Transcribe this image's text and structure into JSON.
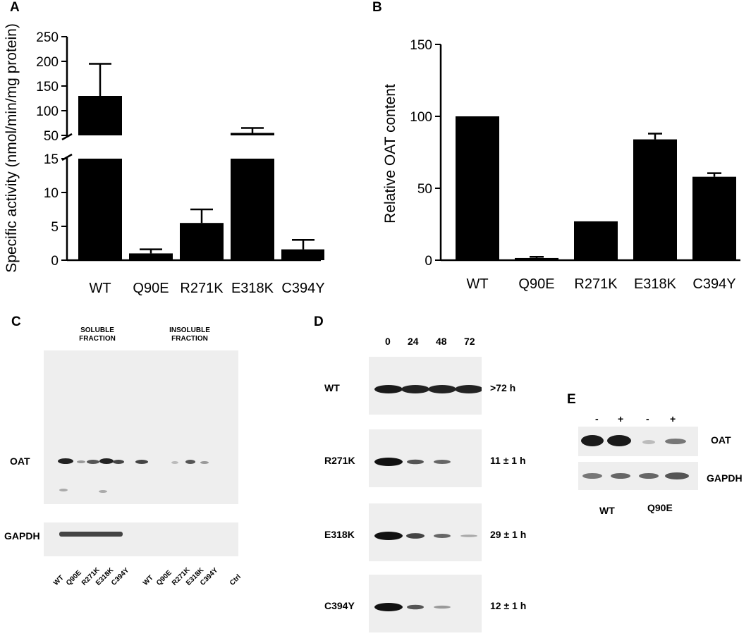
{
  "panels": {
    "a": "A",
    "b": "B",
    "c": "C",
    "d": "D",
    "e": "E"
  },
  "chart_data": [
    {
      "panel": "A",
      "type": "bar",
      "categories": [
        "WT",
        "Q90E",
        "R271K",
        "E318K",
        "C394Y"
      ],
      "values": [
        130,
        1.0,
        5.5,
        55,
        1.6
      ],
      "errors": [
        65,
        0.6,
        2.0,
        10,
        1.4
      ],
      "ylabel": "Specific activity (nmol/min/mg protein)",
      "broken_axis": {
        "lower_range": [
          0,
          15
        ],
        "upper_range": [
          50,
          250
        ],
        "lower_ticks": [
          "0",
          "5",
          "10",
          "15"
        ],
        "upper_ticks": [
          "50",
          "100",
          "150",
          "200",
          "250"
        ]
      },
      "color": "#000000"
    },
    {
      "panel": "B",
      "type": "bar",
      "categories": [
        "WT",
        "Q90E",
        "R271K",
        "E318K",
        "C394Y"
      ],
      "values": [
        100,
        1.5,
        27,
        84,
        58
      ],
      "errors": [
        0,
        0.8,
        0,
        4,
        2.5
      ],
      "ylabel": "Relative OAT content",
      "ylim": [
        0,
        150
      ],
      "yticks": [
        "0",
        "50",
        "100",
        "150"
      ],
      "color": "#000000"
    }
  ],
  "blot_c": {
    "soluble": "SOLUBLE\nFRACTION",
    "insoluble": "INSOLUBLE\nFRACTION",
    "row_labels": [
      "OAT",
      "GAPDH"
    ],
    "lanes": [
      "WT",
      "Q90E",
      "R271K",
      "E318K",
      "C394Y",
      "WT",
      "Q90E",
      "R271K",
      "E318K",
      "C394Y",
      "Ctrl"
    ]
  },
  "blot_d": {
    "timepoints": [
      "0",
      "24",
      "48",
      "72"
    ],
    "rows": [
      {
        "label": "WT",
        "halflife": ">72 h"
      },
      {
        "label": "R271K",
        "halflife": "11 ± 1 h"
      },
      {
        "label": "E318K",
        "halflife": "29 ± 1 h"
      },
      {
        "label": "C394Y",
        "halflife": "12 ± 1 h"
      }
    ]
  },
  "blot_e": {
    "treatments": [
      "-",
      "+",
      "-",
      "+"
    ],
    "row_labels": [
      "OAT",
      "GAPDH"
    ],
    "groups": [
      "WT",
      "Q90E"
    ]
  }
}
